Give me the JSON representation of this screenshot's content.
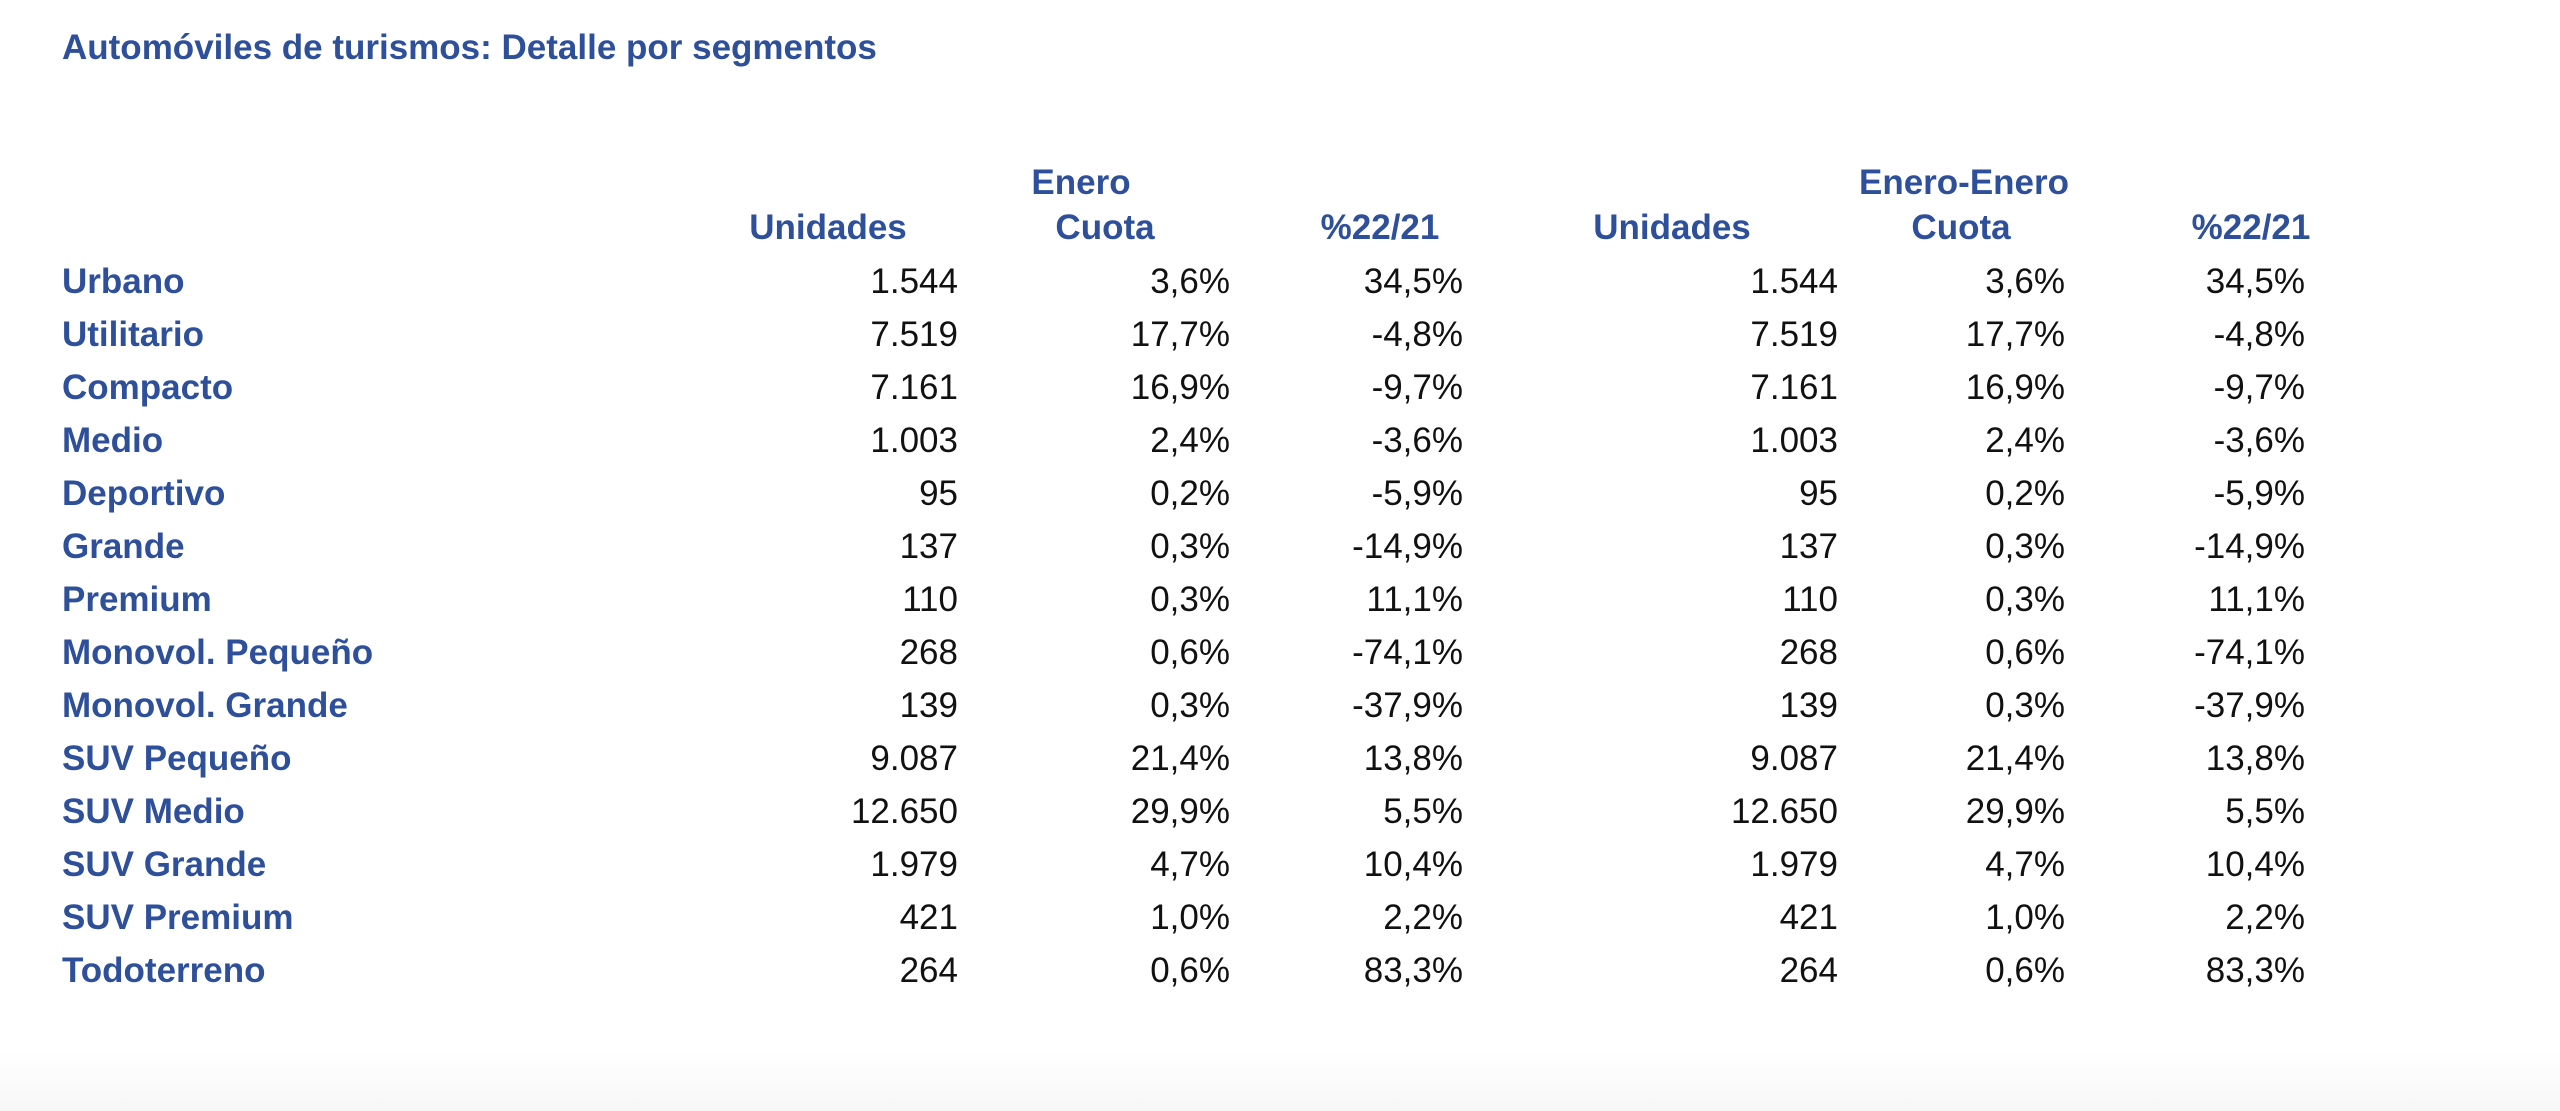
{
  "title": "Automóviles de turismos: Detalle por segmentos",
  "groups": [
    {
      "label": "Enero"
    },
    {
      "label": "Enero-Enero"
    }
  ],
  "columns": [
    "Unidades",
    "Cuota",
    "%22/21"
  ],
  "rows": [
    {
      "segment": "Urbano",
      "g1": [
        "1.544",
        "3,6%",
        "34,5%"
      ],
      "g2": [
        "1.544",
        "3,6%",
        "34,5%"
      ]
    },
    {
      "segment": "Utilitario",
      "g1": [
        "7.519",
        "17,7%",
        "-4,8%"
      ],
      "g2": [
        "7.519",
        "17,7%",
        "-4,8%"
      ]
    },
    {
      "segment": "Compacto",
      "g1": [
        "7.161",
        "16,9%",
        "-9,7%"
      ],
      "g2": [
        "7.161",
        "16,9%",
        "-9,7%"
      ]
    },
    {
      "segment": "Medio",
      "g1": [
        "1.003",
        "2,4%",
        "-3,6%"
      ],
      "g2": [
        "1.003",
        "2,4%",
        "-3,6%"
      ]
    },
    {
      "segment": "Deportivo",
      "g1": [
        "95",
        "0,2%",
        "-5,9%"
      ],
      "g2": [
        "95",
        "0,2%",
        "-5,9%"
      ]
    },
    {
      "segment": "Grande",
      "g1": [
        "137",
        "0,3%",
        "-14,9%"
      ],
      "g2": [
        "137",
        "0,3%",
        "-14,9%"
      ]
    },
    {
      "segment": "Premium",
      "g1": [
        "110",
        "0,3%",
        "11,1%"
      ],
      "g2": [
        "110",
        "0,3%",
        "11,1%"
      ]
    },
    {
      "segment": "Monovol. Pequeño",
      "g1": [
        "268",
        "0,6%",
        "-74,1%"
      ],
      "g2": [
        "268",
        "0,6%",
        "-74,1%"
      ]
    },
    {
      "segment": "Monovol. Grande",
      "g1": [
        "139",
        "0,3%",
        "-37,9%"
      ],
      "g2": [
        "139",
        "0,3%",
        "-37,9%"
      ]
    },
    {
      "segment": "SUV Pequeño",
      "g1": [
        "9.087",
        "21,4%",
        "13,8%"
      ],
      "g2": [
        "9.087",
        "21,4%",
        "13,8%"
      ]
    },
    {
      "segment": "SUV Medio",
      "g1": [
        "12.650",
        "29,9%",
        "5,5%"
      ],
      "g2": [
        "12.650",
        "29,9%",
        "5,5%"
      ]
    },
    {
      "segment": "SUV Grande",
      "g1": [
        "1.979",
        "4,7%",
        "10,4%"
      ],
      "g2": [
        "1.979",
        "4,7%",
        "10,4%"
      ]
    },
    {
      "segment": "SUV Premium",
      "g1": [
        "421",
        "1,0%",
        "2,2%"
      ],
      "g2": [
        "421",
        "1,0%",
        "2,2%"
      ]
    },
    {
      "segment": "Todoterreno",
      "g1": [
        "264",
        "0,6%",
        "83,3%"
      ],
      "g2": [
        "264",
        "0,6%",
        "83,3%"
      ]
    }
  ],
  "colors": {
    "label_blue": "#2e4f9a",
    "value_text": "#111111",
    "background": "#ffffff"
  }
}
